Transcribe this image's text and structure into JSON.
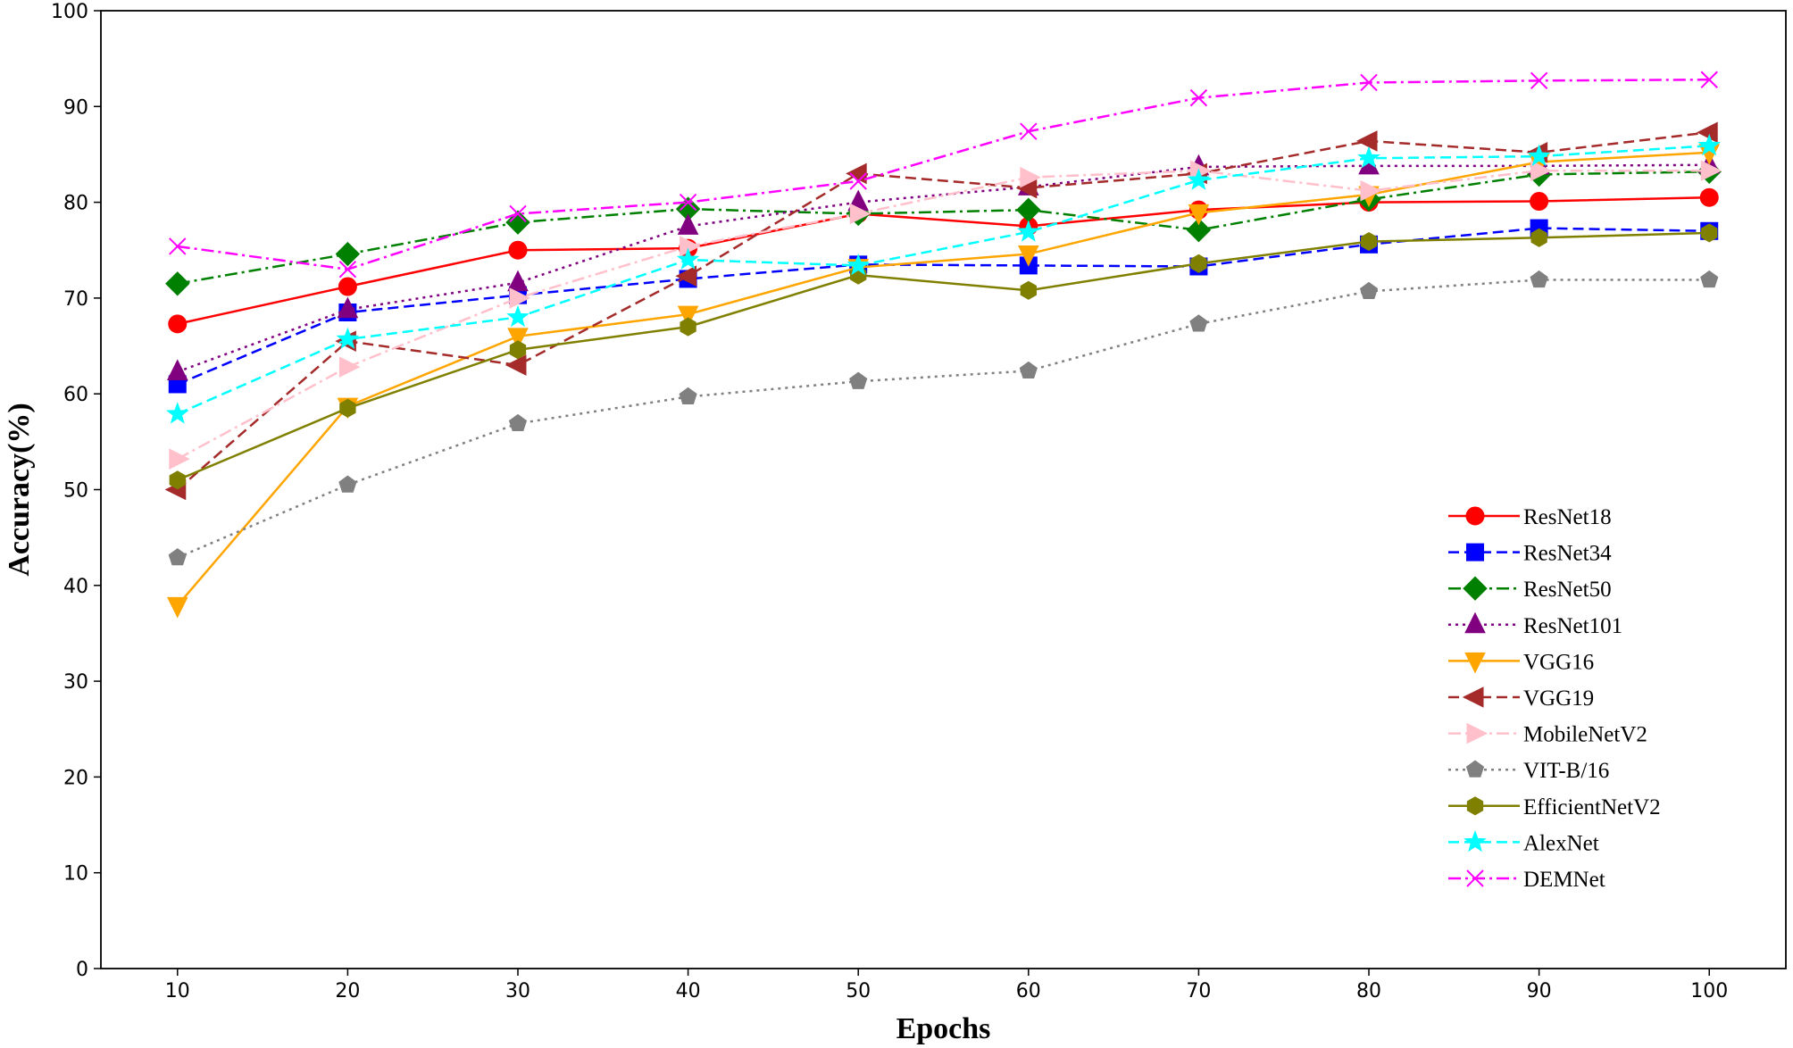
{
  "chart_data": {
    "type": "line",
    "title": "",
    "xlabel": "Epochs",
    "ylabel": "Accuracy(%)",
    "x": [
      10,
      20,
      30,
      40,
      50,
      60,
      70,
      80,
      90,
      100
    ],
    "xlim": [
      5.5,
      104.5
    ],
    "ylim": [
      0,
      100
    ],
    "xticks": [
      10,
      20,
      30,
      40,
      50,
      60,
      70,
      80,
      90,
      100
    ],
    "yticks": [
      0,
      10,
      20,
      30,
      40,
      50,
      60,
      70,
      80,
      90,
      100
    ],
    "grid": false,
    "legend_position": "lower-right",
    "series": [
      {
        "name": "ResNet18",
        "color": "#ff0000",
        "marker": "circle",
        "linestyle": "solid",
        "values": [
          67.3,
          71.2,
          75.0,
          75.2,
          78.8,
          77.5,
          79.2,
          80.0,
          80.1,
          80.5
        ]
      },
      {
        "name": "ResNet34",
        "color": "#0000ff",
        "marker": "square",
        "linestyle": "dashed",
        "values": [
          61.0,
          68.5,
          70.3,
          72.0,
          73.5,
          73.4,
          73.3,
          75.6,
          77.3,
          77.0
        ]
      },
      {
        "name": "ResNet50",
        "color": "#008000",
        "marker": "diamond",
        "linestyle": "dashdot",
        "values": [
          71.5,
          74.6,
          77.9,
          79.3,
          78.8,
          79.2,
          77.1,
          80.3,
          82.9,
          83.2
        ]
      },
      {
        "name": "ResNet101",
        "color": "#800080",
        "marker": "triangle-up",
        "linestyle": "dotted",
        "values": [
          62.3,
          68.8,
          71.6,
          77.5,
          80.0,
          81.6,
          83.7,
          83.8,
          83.8,
          83.9
        ]
      },
      {
        "name": "VGG16",
        "color": "#ffa500",
        "marker": "triangle-down",
        "linestyle": "solid",
        "values": [
          37.9,
          58.7,
          66.0,
          68.3,
          73.2,
          74.6,
          78.9,
          80.8,
          84.2,
          85.2
        ]
      },
      {
        "name": "VGG19",
        "color": "#a52a2a",
        "marker": "triangle-left",
        "linestyle": "dashed",
        "values": [
          50.0,
          65.5,
          63.0,
          72.3,
          83.0,
          81.5,
          83.0,
          86.4,
          85.2,
          87.3
        ]
      },
      {
        "name": "MobileNetV2",
        "color": "#ffc0cb",
        "marker": "triangle-right",
        "linestyle": "dashdot",
        "values": [
          53.2,
          62.8,
          70.0,
          75.4,
          78.8,
          82.6,
          83.3,
          81.2,
          83.3,
          83.3
        ]
      },
      {
        "name": "VIT-B/16",
        "color": "#808080",
        "marker": "pentagon",
        "linestyle": "dotted",
        "values": [
          42.9,
          50.5,
          56.9,
          59.7,
          61.3,
          62.4,
          67.3,
          70.7,
          71.9,
          71.9
        ]
      },
      {
        "name": "EfficientNetV2",
        "color": "#808000",
        "marker": "hexagon",
        "linestyle": "solid",
        "values": [
          51.0,
          58.5,
          64.6,
          67.0,
          72.4,
          70.8,
          73.6,
          75.9,
          76.3,
          76.8
        ]
      },
      {
        "name": "AlexNet",
        "color": "#00ffff",
        "marker": "star",
        "linestyle": "dashed",
        "values": [
          57.9,
          65.7,
          68.0,
          74.0,
          73.4,
          76.9,
          82.3,
          84.6,
          84.8,
          85.9
        ]
      },
      {
        "name": "DEMNet",
        "color": "#ff00ff",
        "marker": "x",
        "linestyle": "dashdot",
        "values": [
          75.4,
          73.0,
          78.8,
          80.0,
          82.2,
          87.4,
          90.9,
          92.5,
          92.7,
          92.8
        ]
      }
    ]
  }
}
